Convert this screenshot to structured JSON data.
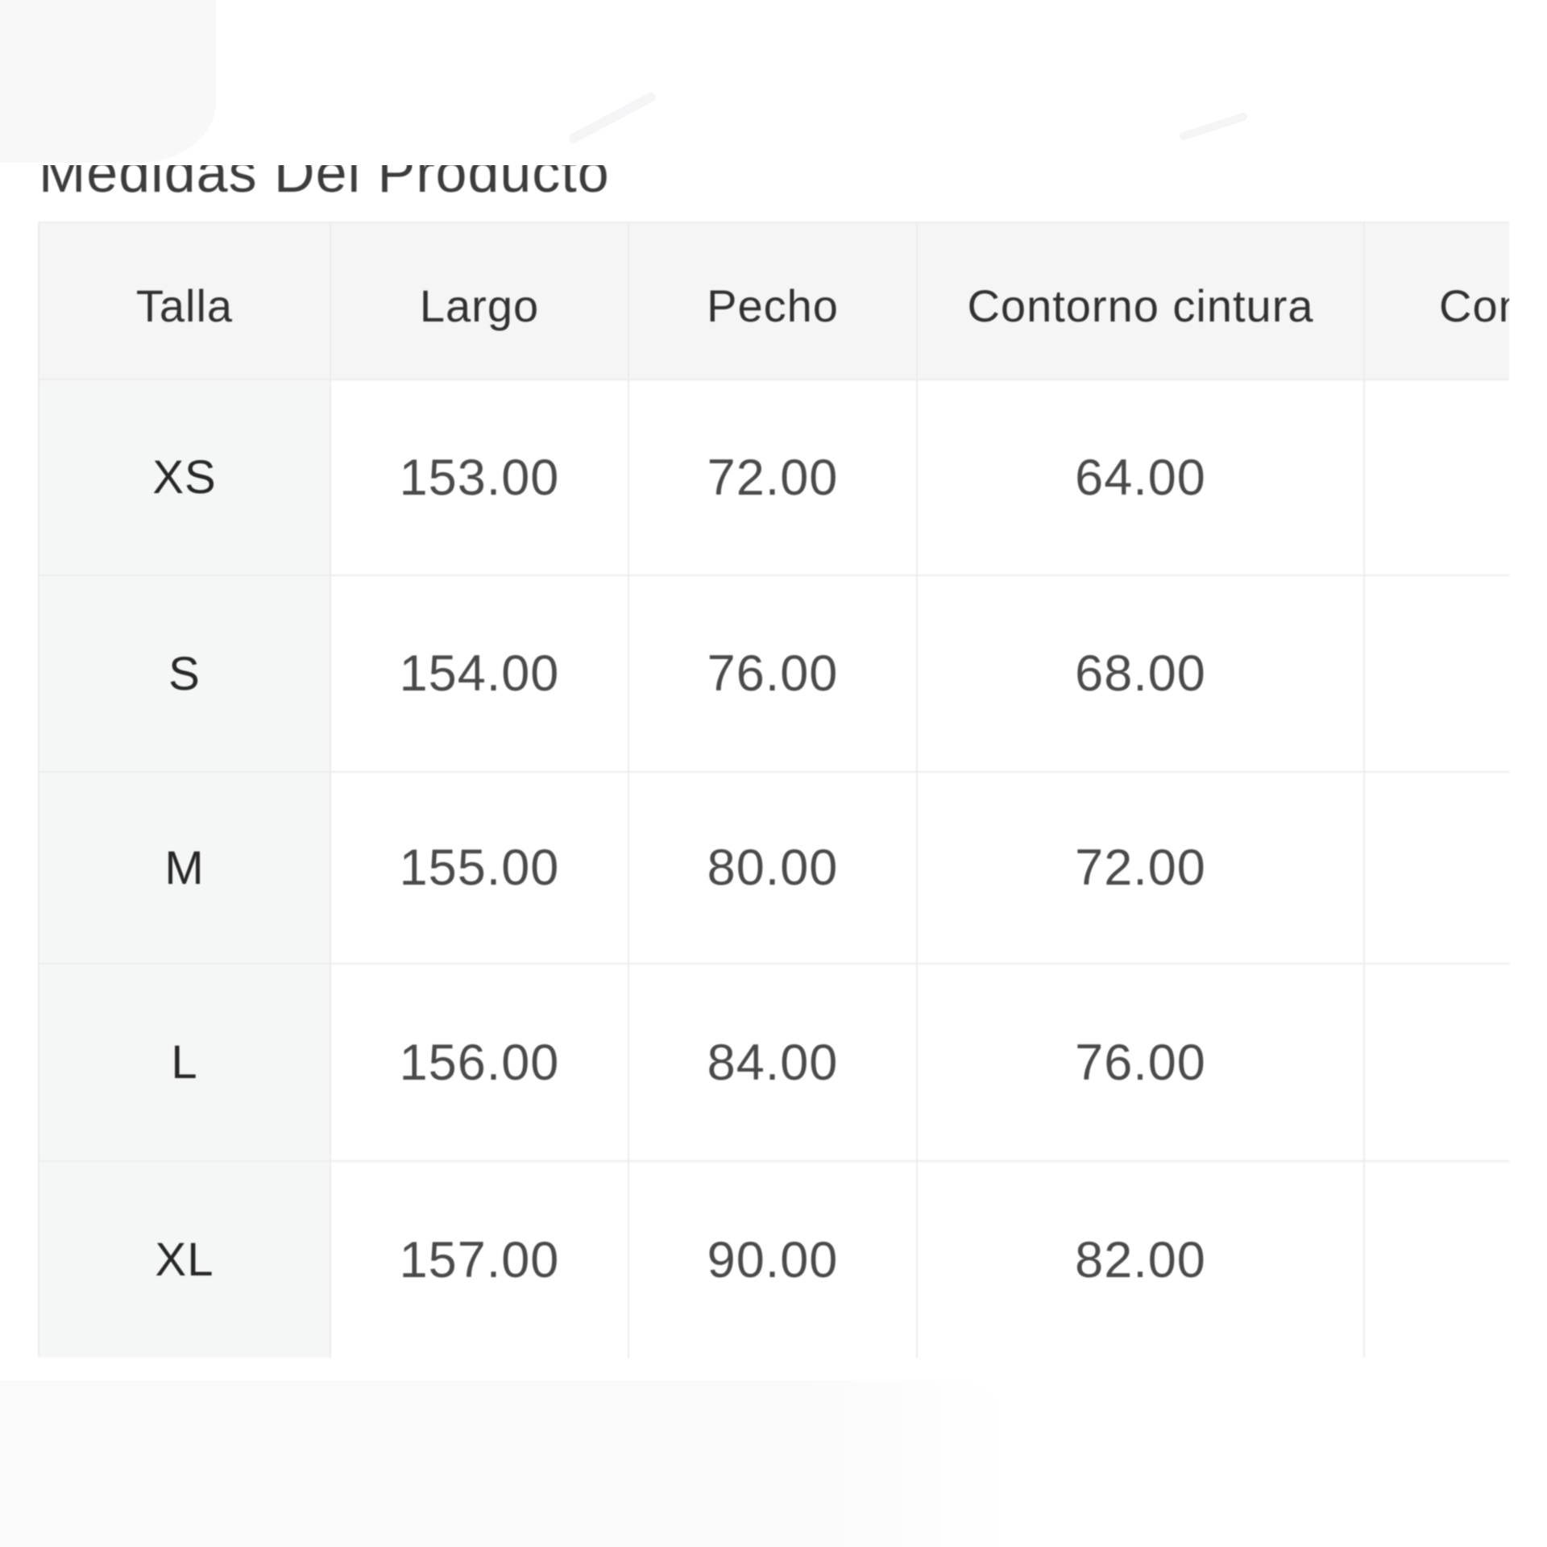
{
  "title": "Medidas Del Producto",
  "colors": {
    "header_background": "#f5f5f6",
    "first_column_background": "#f5f6f6",
    "cell_background": "#ffffff",
    "border": "#ececec",
    "header_text": "#313131",
    "value_text": "#4a4a4a"
  },
  "table": {
    "columns": [
      {
        "label": "Talla"
      },
      {
        "label": "Largo"
      },
      {
        "label": "Pecho"
      },
      {
        "label": "Contorno cintura"
      },
      {
        "label": "Conto"
      }
    ],
    "rows": [
      {
        "size": "XS",
        "values": [
          "153.00",
          "72.00",
          "64.00",
          ""
        ]
      },
      {
        "size": "S",
        "values": [
          "154.00",
          "76.00",
          "68.00",
          ""
        ]
      },
      {
        "size": "M",
        "values": [
          "155.00",
          "80.00",
          "72.00",
          ""
        ]
      },
      {
        "size": "L",
        "values": [
          "156.00",
          "84.00",
          "76.00",
          ""
        ]
      },
      {
        "size": "XL",
        "values": [
          "157.00",
          "90.00",
          "82.00",
          ""
        ]
      }
    ]
  }
}
